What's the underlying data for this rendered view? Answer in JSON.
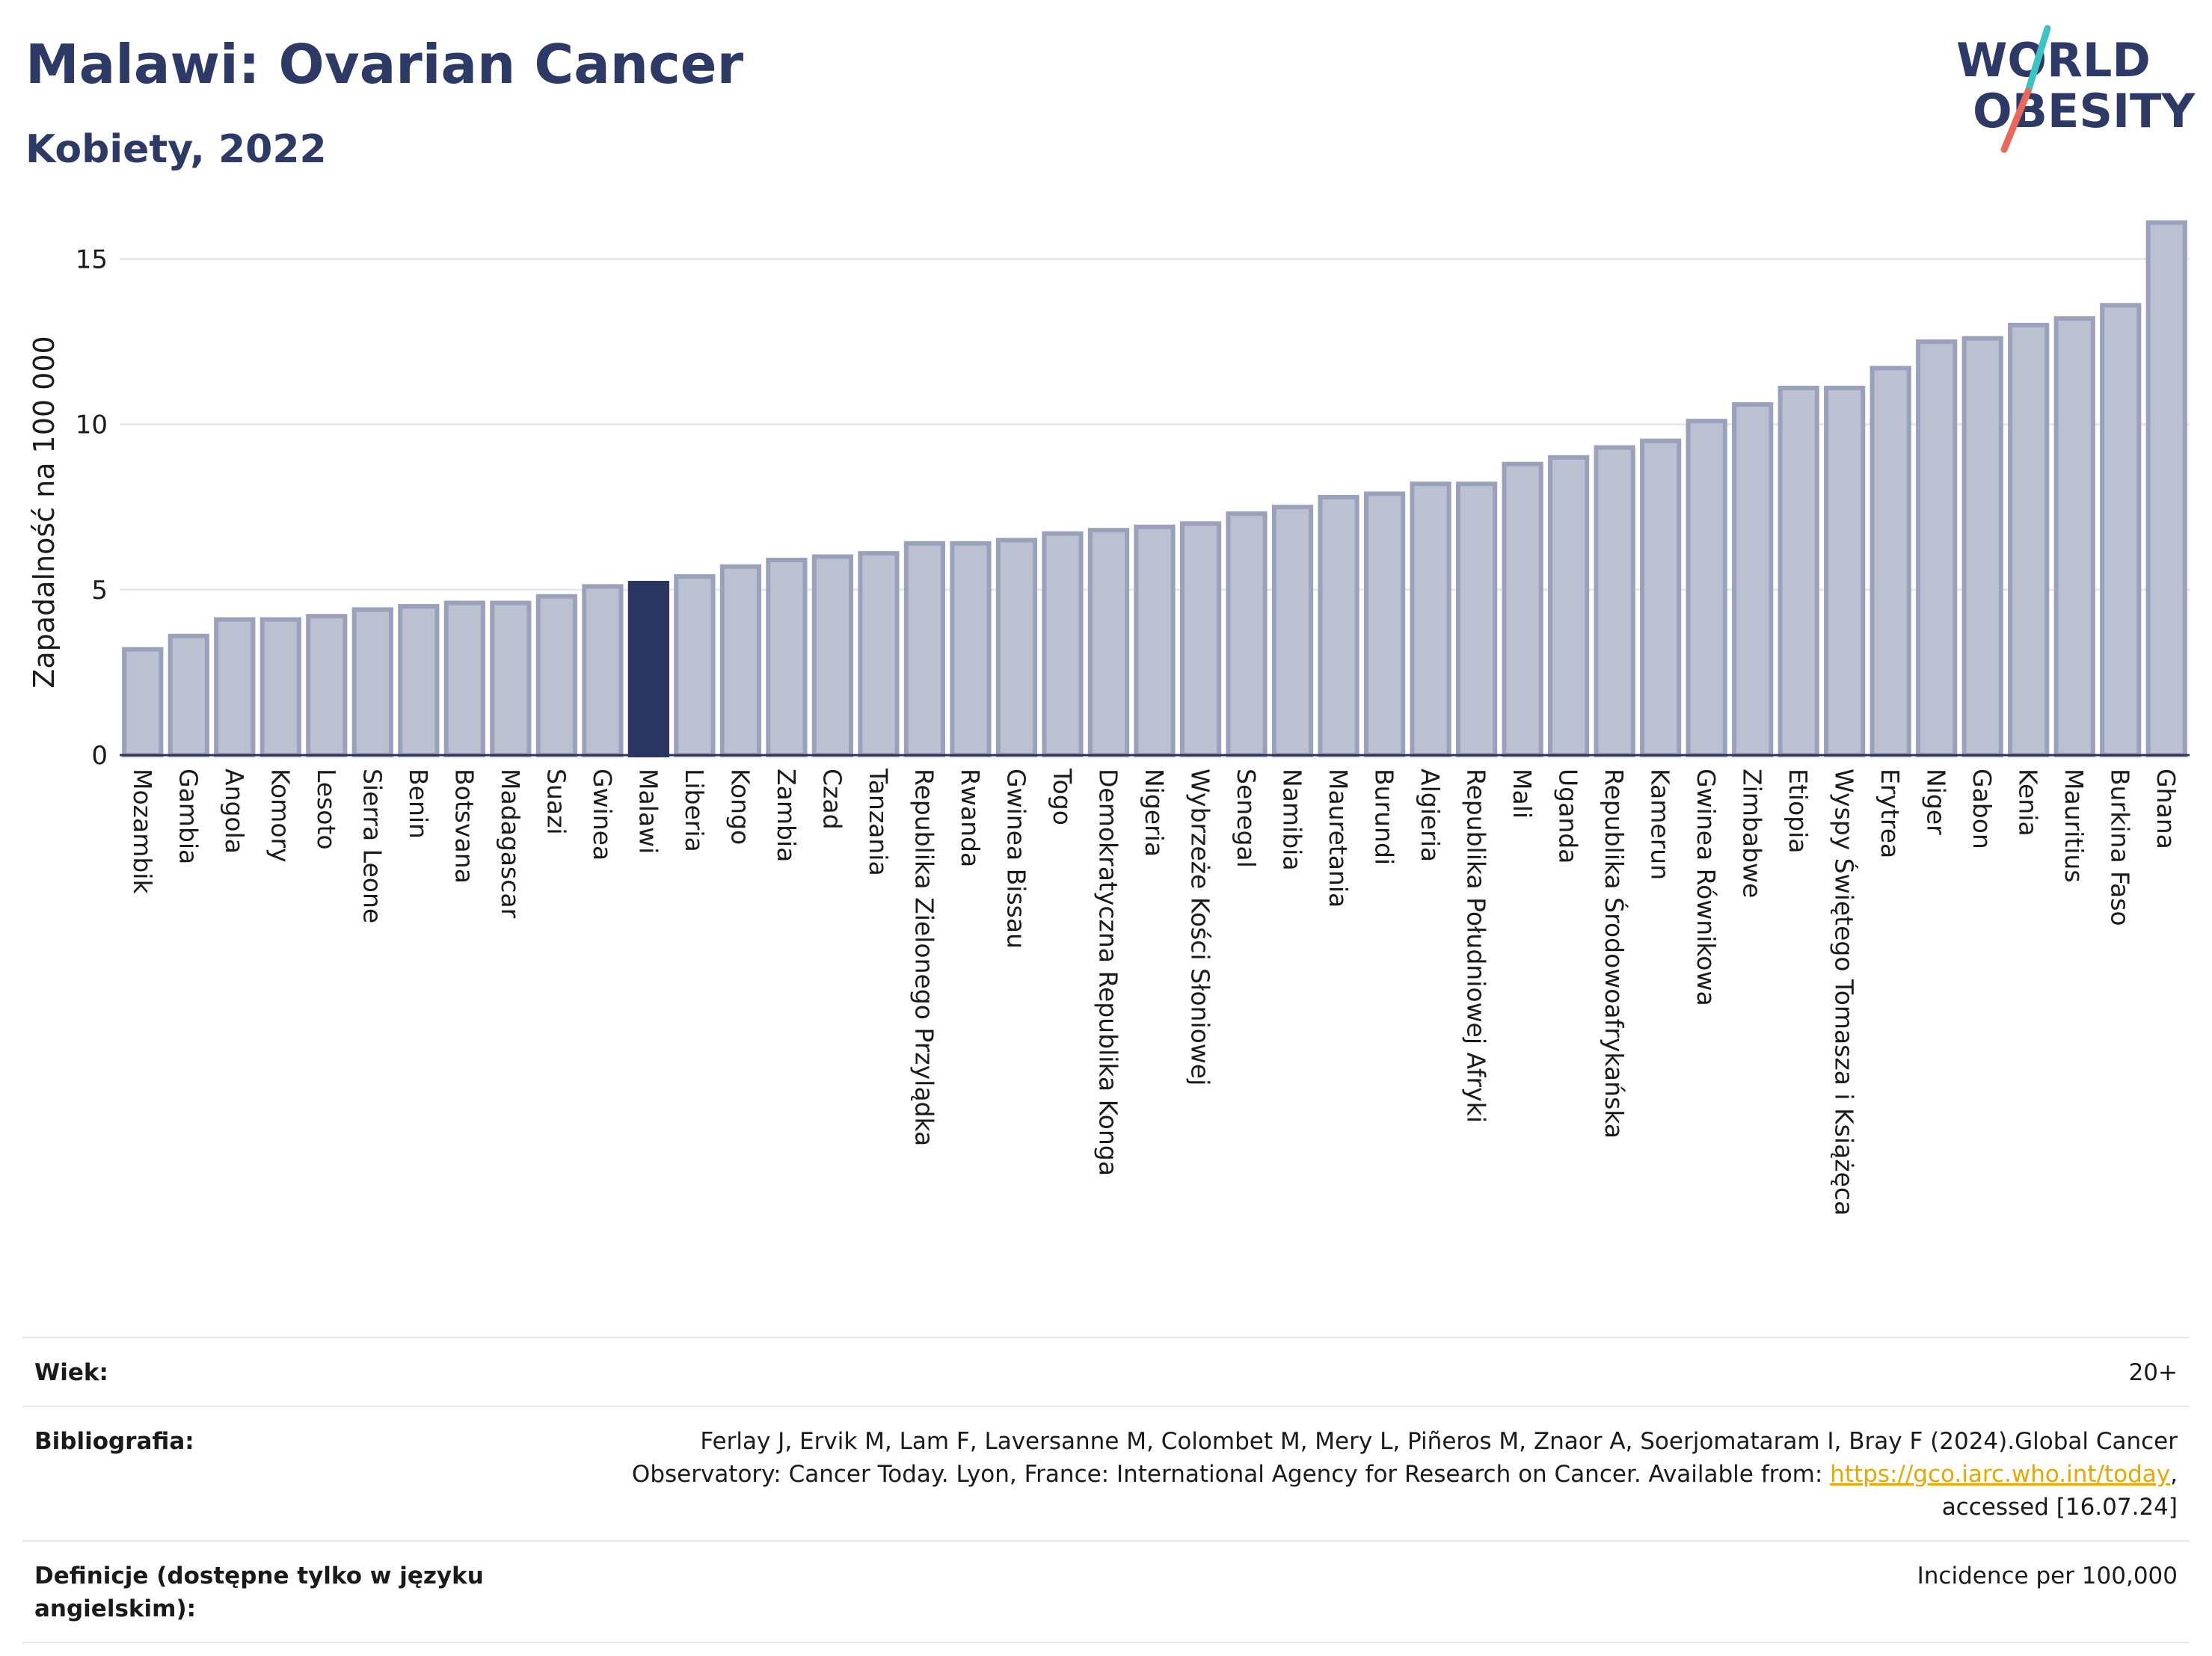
{
  "header": {
    "title": "Malawi: Ovarian Cancer",
    "subtitle": "Kobiety, 2022"
  },
  "logo": {
    "line1": "WORLD",
    "line2": "OBESITY",
    "colors": {
      "text": "#2e3a66",
      "accent_teal": "#3cc4c4",
      "accent_coral": "#e9685a"
    }
  },
  "chart_data": {
    "type": "bar",
    "ylabel": "Zapadalność na 100 000",
    "xlabel": "",
    "ylim": [
      0,
      16.5
    ],
    "yticks": [
      0,
      5,
      10,
      15
    ],
    "grid": true,
    "highlight": "Malawi",
    "colors": {
      "bar": "#bcc1d1",
      "bar_edge": "#9aa1bb",
      "highlight": "#2b3561"
    },
    "categories": [
      "Mozambik",
      "Gambia",
      "Angola",
      "Komory",
      "Lesoto",
      "Sierra Leone",
      "Benin",
      "Botsvana",
      "Madagascar",
      "Suazi",
      "Gwinea",
      "Malawi",
      "Liberia",
      "Kongo",
      "Zambia",
      "Czad",
      "Tanzania",
      "Republika Zielonego Przylądka",
      "Rwanda",
      "Gwinea Bissau",
      "Togo",
      "Demokratyczna Republika Konga",
      "Nigeria",
      "Wybrzeże Kości Słoniowej",
      "Senegal",
      "Namibia",
      "Mauretania",
      "Burundi",
      "Algieria",
      "Republika Południowej Afryki",
      "Mali",
      "Uganda",
      "Republika Środowoafrykańska",
      "Kamerun",
      "Gwinea Równikowa",
      "Zimbabwe",
      "Etiopia",
      "Wyspy Świętego Tomasza i Książęca",
      "Erytrea",
      "Niger",
      "Gabon",
      "Kenia",
      "Mauritius",
      "Burkina Faso",
      "Ghana"
    ],
    "values": [
      3.2,
      3.6,
      4.1,
      4.1,
      4.2,
      4.4,
      4.5,
      4.6,
      4.6,
      4.8,
      5.1,
      5.2,
      5.4,
      5.7,
      5.9,
      6.0,
      6.1,
      6.4,
      6.4,
      6.5,
      6.7,
      6.8,
      6.9,
      7.0,
      7.3,
      7.5,
      7.8,
      7.9,
      8.2,
      8.2,
      8.8,
      9.0,
      9.3,
      9.5,
      10.1,
      10.6,
      11.1,
      11.1,
      11.7,
      12.5,
      12.6,
      13.0,
      13.2,
      13.6,
      16.1
    ]
  },
  "info": {
    "age_label": "Wiek:",
    "age_value": "20+",
    "bib_label": "Bibliografia:",
    "bib_line1": "Ferlay J, Ervik M, Lam F, Laversanne M, Colombet M, Mery L, Piñeros M, Znaor A, Soerjomataram I, Bray F (2024).Global Cancer",
    "bib_line2_pre": "Observatory: Cancer Today. Lyon, France: International Agency for Research on Cancer. Available from: ",
    "bib_link": "https://gco.iarc.who.int/today",
    "bib_line2_post": ",",
    "bib_line3": "accessed [16.07.24]",
    "def_label": "Definicje (dostępne tylko w języku angielskim):",
    "def_value": "Incidence per 100,000"
  }
}
